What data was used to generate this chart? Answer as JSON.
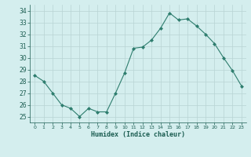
{
  "x": [
    0,
    1,
    2,
    3,
    4,
    5,
    6,
    7,
    8,
    9,
    10,
    11,
    12,
    13,
    14,
    15,
    16,
    17,
    18,
    19,
    20,
    21,
    22,
    23
  ],
  "y": [
    28.5,
    28.0,
    27.0,
    26.0,
    25.7,
    25.0,
    25.7,
    25.4,
    25.4,
    27.0,
    28.7,
    30.8,
    30.9,
    31.5,
    32.5,
    33.8,
    33.2,
    33.3,
    32.7,
    32.0,
    31.2,
    30.0,
    28.9,
    27.6
  ],
  "title": "",
  "xlabel": "Humidex (Indice chaleur)",
  "ylabel": "",
  "xlim": [
    -0.5,
    23.5
  ],
  "ylim": [
    24.5,
    34.5
  ],
  "yticks": [
    25,
    26,
    27,
    28,
    29,
    30,
    31,
    32,
    33,
    34
  ],
  "xticks": [
    0,
    1,
    2,
    3,
    4,
    5,
    6,
    7,
    8,
    9,
    10,
    11,
    12,
    13,
    14,
    15,
    16,
    17,
    18,
    19,
    20,
    21,
    22,
    23
  ],
  "line_color": "#2e7d6e",
  "marker_color": "#2e7d6e",
  "bg_color": "#d4eeee",
  "grid_color": "#b8d4d4",
  "axis_label_color": "#1a5c50",
  "tick_color": "#1a5c50"
}
